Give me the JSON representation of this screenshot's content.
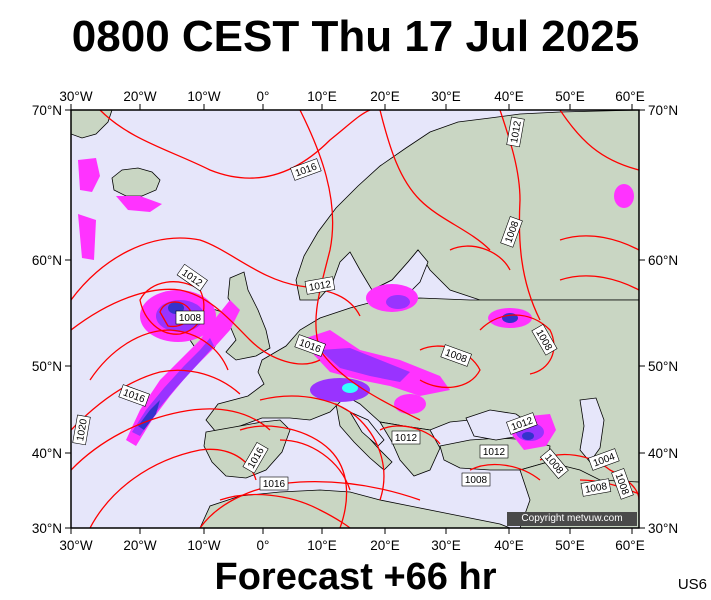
{
  "title": "0800 CEST Thu 17 Jul 2025",
  "forecast_label": "Forecast +66 hr",
  "region_code": "US6",
  "copyright": "Copyright metvuw.com",
  "colors": {
    "sea": "#e6e6fa",
    "land": "#c9d6c3",
    "isobar": "#ff0000",
    "coastline": "#000000",
    "rain_light": "#ff33ff",
    "rain_mid": "#9933ff",
    "rain_heavy": "#3333cc",
    "rain_extreme": "#33ffff"
  },
  "axes": {
    "top_ticks": [
      "30°W",
      "20°W",
      "10°W",
      "0°",
      "10°E",
      "20°E",
      "30°E",
      "40°E",
      "50°E",
      "60°E"
    ],
    "bottom_ticks": [
      "30°W",
      "20°W",
      "10°W",
      "0°",
      "10°E",
      "20°E",
      "30°E",
      "40°E",
      "50°E",
      "60°E"
    ],
    "left_ticks": [
      "70°N",
      "60°N",
      "50°N",
      "40°N",
      "30°N"
    ],
    "right_ticks": [
      "70°N",
      "60°N",
      "50°N",
      "40°N",
      "30°N"
    ]
  },
  "isobar_labels": [
    "1016",
    "1012",
    "1012",
    "1008",
    "1012",
    "1016",
    "1016",
    "1020",
    "1016",
    "1016",
    "1012",
    "1012",
    "1012",
    "1008",
    "1008",
    "1008",
    "1008",
    "1004",
    "1008",
    "1008",
    "1008"
  ]
}
